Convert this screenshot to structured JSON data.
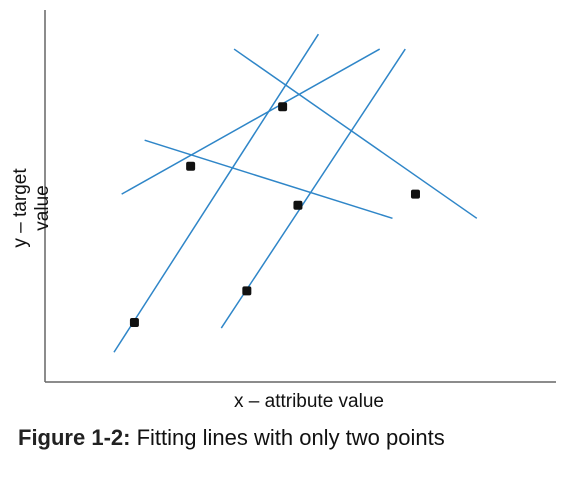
{
  "axes": {
    "y_label": "y – target value",
    "x_label": "x – attribute value"
  },
  "caption": {
    "prefix": "Figure 1-2:",
    "text": "Fitting lines with only two points"
  },
  "colors": {
    "line": "#2f86c8",
    "point": "#111111",
    "axis": "#666666",
    "text": "#111111"
  },
  "chart_data": {
    "type": "scatter",
    "xlabel": "x – attribute value",
    "ylabel": "y – target value",
    "xlim": [
      0,
      10
    ],
    "ylim": [
      0,
      10
    ],
    "points": [
      {
        "x": 1.75,
        "y": 1.6
      },
      {
        "x": 2.85,
        "y": 5.8
      },
      {
        "x": 3.95,
        "y": 2.45
      },
      {
        "x": 4.65,
        "y": 7.4
      },
      {
        "x": 4.95,
        "y": 4.75
      },
      {
        "x": 7.25,
        "y": 5.05
      }
    ],
    "lines": [
      {
        "x1": 1.35,
        "y1": 0.8,
        "x2": 5.35,
        "y2": 9.35
      },
      {
        "x1": 3.45,
        "y1": 1.45,
        "x2": 7.05,
        "y2": 8.95
      },
      {
        "x1": 1.5,
        "y1": 5.05,
        "x2": 6.55,
        "y2": 8.95
      },
      {
        "x1": 3.7,
        "y1": 8.95,
        "x2": 8.45,
        "y2": 4.4
      },
      {
        "x1": 1.95,
        "y1": 6.5,
        "x2": 6.8,
        "y2": 4.4
      }
    ]
  }
}
